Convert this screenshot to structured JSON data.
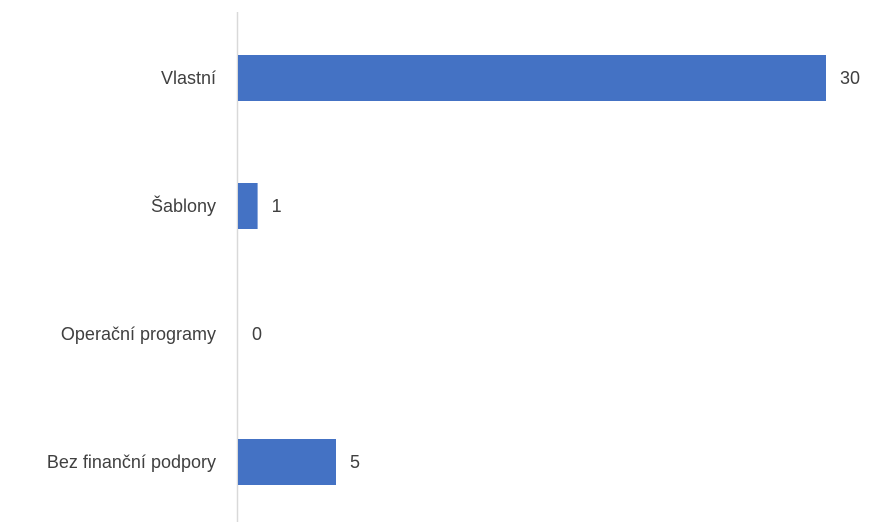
{
  "chart_data": {
    "type": "bar",
    "orientation": "horizontal",
    "categories": [
      "Vlastní",
      "Šablony",
      "Operační programy",
      "Bez finanční podpory"
    ],
    "values": [
      30,
      1,
      0,
      5
    ],
    "data_labels": [
      "30",
      "1",
      "0",
      "5"
    ],
    "xlim": [
      0,
      30
    ],
    "grid": false,
    "legend": "none",
    "colors": {
      "bar": "#4472c4",
      "axis": "#d9d9d9",
      "text": "#404040"
    }
  }
}
